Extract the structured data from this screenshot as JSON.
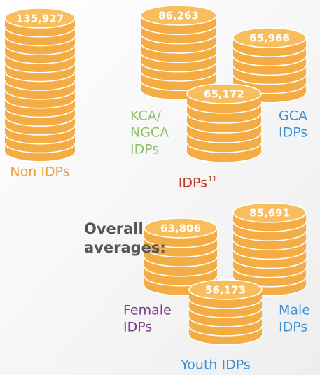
{
  "stacks": [
    {
      "value": "135,927"
    },
    {
      "value": "86,263"
    },
    {
      "value": "65,966"
    },
    {
      "value": "65,172"
    },
    {
      "value": "63,806"
    },
    {
      "value": "85,691"
    },
    {
      "value": "56,173"
    }
  ],
  "labels": [
    {
      "lines": [
        "Non IDPs"
      ],
      "color": "#f39a3b"
    },
    {
      "lines": [
        "KCA/",
        "NGCA",
        "IDPs"
      ],
      "color": "#8cc16a"
    },
    {
      "lines": [
        "GCA",
        "IDPs"
      ],
      "color": "#3b8fd2"
    },
    {
      "lines": [
        "Female",
        "IDPs"
      ],
      "color": "#7a3e8a"
    },
    {
      "lines": [
        "Male",
        "IDPs"
      ],
      "color": "#3b8fd2"
    },
    {
      "lines": [
        "Youth IDPs"
      ],
      "color": "#3b8fd2"
    }
  ],
  "idps_label": {
    "text": "IDPs",
    "footnote": "11",
    "color": "#c0392b"
  },
  "overall": [
    "Overall",
    "averages:"
  ]
}
